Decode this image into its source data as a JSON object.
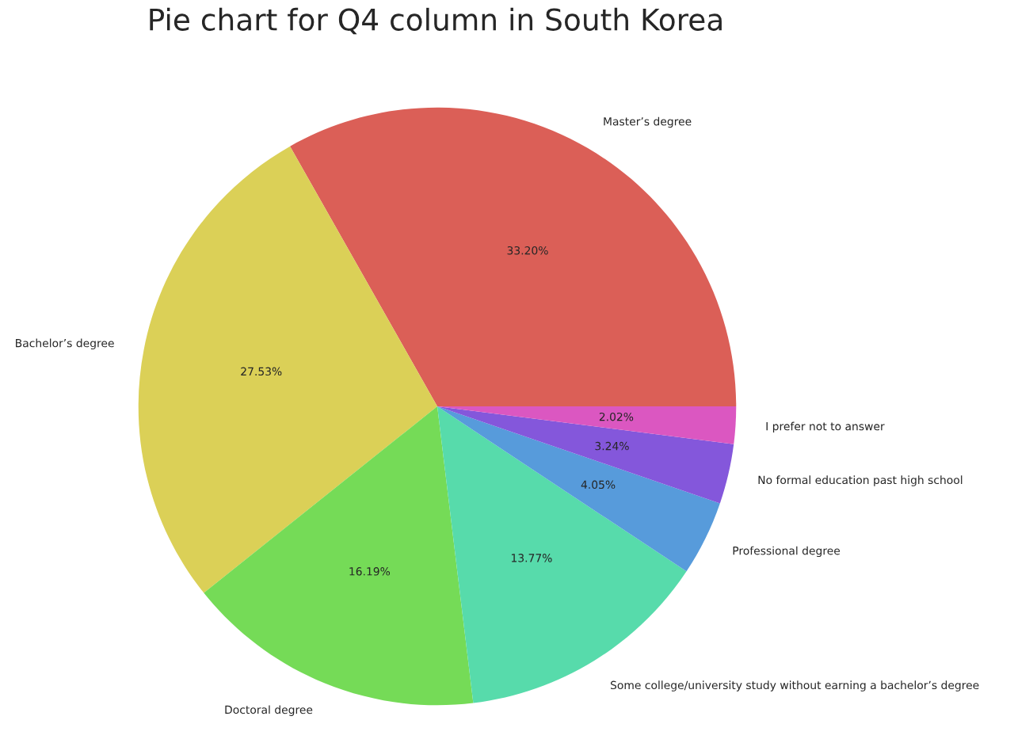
{
  "chart_data": {
    "type": "pie",
    "title": "Pie chart for Q4 column in South Korea",
    "categories": [
      "Master’s degree",
      "Bachelor’s degree",
      "Doctoral degree",
      "Some college/university study without earning a bachelor’s degree",
      "Professional degree",
      "No formal education past high school",
      "I prefer not to answer"
    ],
    "values": [
      33.2,
      27.53,
      16.19,
      13.77,
      4.05,
      3.24,
      2.02
    ],
    "value_labels": [
      "33.20%",
      "27.53%",
      "16.19%",
      "13.77%",
      "4.05%",
      "3.24%",
      "2.02%"
    ],
    "colors": [
      "#db5f57",
      "#dbd057",
      "#75db57",
      "#57dbab",
      "#579bdb",
      "#8457db",
      "#db57c1"
    ]
  }
}
